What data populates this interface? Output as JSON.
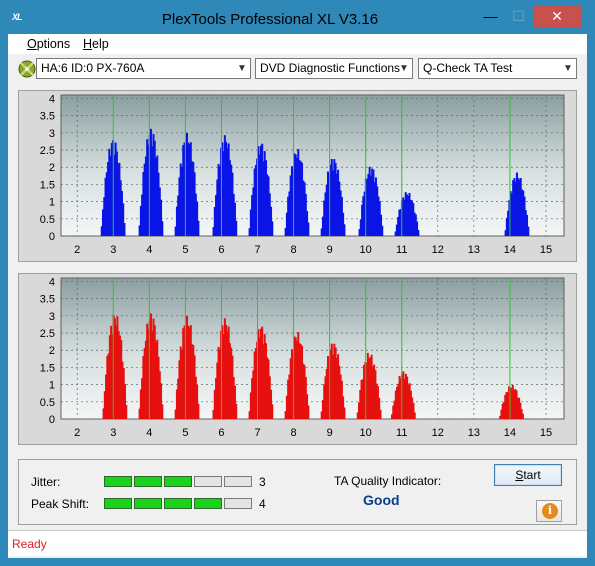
{
  "window": {
    "title": "PlexTools Professional XL V3.16",
    "icon_label": "XL",
    "controls": [
      "minimize",
      "maximize",
      "close"
    ]
  },
  "menu": {
    "items": [
      {
        "label": "Options",
        "mnemonic": "O",
        "rest": "ptions"
      },
      {
        "label": "Help",
        "mnemonic": "H",
        "rest": "elp"
      }
    ]
  },
  "toolbar": {
    "drive": "HA:6 ID:0  PX-760A",
    "function": "DVD Diagnostic Functions",
    "test": "Q-Check TA Test"
  },
  "charts": {
    "y_ticks": [
      "4",
      "3.5",
      "3",
      "2.5",
      "2",
      "1.5",
      "1",
      "0.5",
      "0"
    ],
    "x_ticks": [
      "2",
      "3",
      "4",
      "5",
      "6",
      "7",
      "8",
      "9",
      "10",
      "11",
      "12",
      "13",
      "14",
      "15"
    ]
  },
  "chart_data": [
    {
      "type": "bar",
      "series": [
        {
          "color": "#0a14e6"
        }
      ],
      "x_range": [
        1.55,
        15.5
      ],
      "y_range": [
        0,
        4.1
      ],
      "y_ticks": [
        0,
        0.5,
        1,
        1.5,
        2,
        2.5,
        3,
        3.5,
        4
      ],
      "x_ticks": [
        2,
        3,
        4,
        5,
        6,
        7,
        8,
        9,
        10,
        11,
        12,
        13,
        14,
        15
      ],
      "grid": true,
      "peaks": [
        {
          "center": 3.0,
          "height": 2.85
        },
        {
          "center": 4.05,
          "height": 3.15
        },
        {
          "center": 5.05,
          "height": 3.0
        },
        {
          "center": 6.1,
          "height": 2.95
        },
        {
          "center": 7.1,
          "height": 2.75
        },
        {
          "center": 8.1,
          "height": 2.55
        },
        {
          "center": 9.1,
          "height": 2.3
        },
        {
          "center": 10.15,
          "height": 2.05
        },
        {
          "center": 11.15,
          "height": 1.3
        },
        {
          "center": 14.2,
          "height": 1.85
        }
      ]
    },
    {
      "type": "bar",
      "series": [
        {
          "color": "#e61010"
        }
      ],
      "x_range": [
        1.55,
        15.5
      ],
      "y_range": [
        0,
        4.1
      ],
      "y_ticks": [
        0,
        0.5,
        1,
        1.5,
        2,
        2.5,
        3,
        3.5,
        4
      ],
      "x_ticks": [
        2,
        3,
        4,
        5,
        6,
        7,
        8,
        9,
        10,
        11,
        12,
        13,
        14,
        15
      ],
      "grid": true,
      "peaks": [
        {
          "center": 3.05,
          "height": 3.1
        },
        {
          "center": 4.05,
          "height": 3.1
        },
        {
          "center": 5.05,
          "height": 3.0
        },
        {
          "center": 6.1,
          "height": 2.95
        },
        {
          "center": 7.1,
          "height": 2.75
        },
        {
          "center": 8.1,
          "height": 2.55
        },
        {
          "center": 9.1,
          "height": 2.25
        },
        {
          "center": 10.1,
          "height": 1.95
        },
        {
          "center": 11.05,
          "height": 1.4
        },
        {
          "center": 14.05,
          "height": 1.0
        }
      ]
    }
  ],
  "status": {
    "jitter_label": "Jitter:",
    "jitter_value": "3",
    "jitter_level": 3,
    "peak_label": "Peak Shift:",
    "peak_value": "4",
    "peak_level": 4,
    "segments": 5,
    "ta_label": "TA Quality Indicator:",
    "ta_value": "Good",
    "start": "Start",
    "start_mnemonic": "S",
    "start_rest": "tart"
  },
  "statusbar": {
    "text": "Ready"
  }
}
